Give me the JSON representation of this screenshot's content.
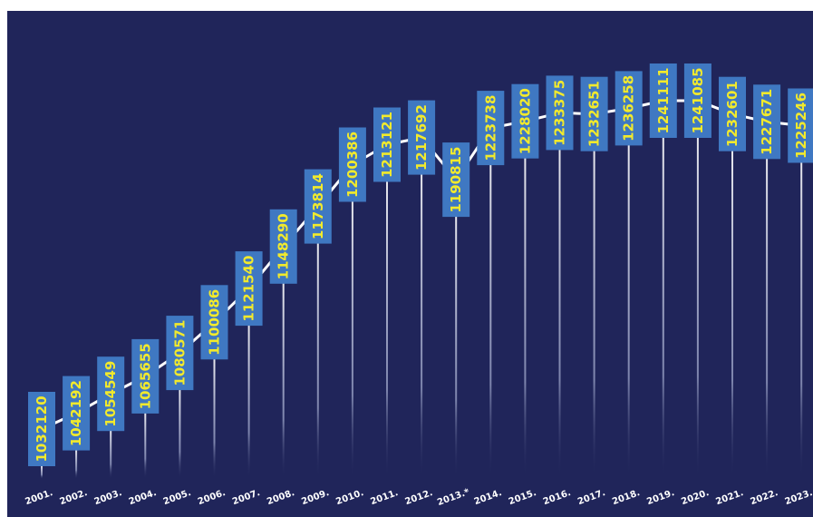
{
  "chart_data": {
    "type": "line",
    "title": "",
    "xlabel": "",
    "ylabel": "",
    "categories": [
      "2001.",
      "2002.",
      "2003.",
      "2004.",
      "2005.",
      "2006.",
      "2007.",
      "2008.",
      "2009.",
      "2010.",
      "2011.",
      "2012.",
      "2013.*",
      "2014.",
      "2015.",
      "2016.",
      "2017.",
      "2018.",
      "2019.",
      "2020.",
      "2021.",
      "2022.",
      "2023."
    ],
    "values": [
      1032120,
      1042192,
      1054549,
      1065655,
      1080571,
      1100086,
      1121540,
      1148290,
      1173814,
      1200386,
      1213121,
      1217692,
      1190815,
      1223738,
      1228020,
      1233375,
      1232651,
      1236258,
      1241111,
      1241085,
      1232601,
      1227671,
      1225246
    ],
    "data_labels": true,
    "grid": false,
    "legend": "none",
    "colors": {
      "background": "#20255a",
      "label_box": "#3f78c2",
      "label_text": "#f2ea2c",
      "line": "#ffffff",
      "tick_text": "#ffffff"
    }
  }
}
